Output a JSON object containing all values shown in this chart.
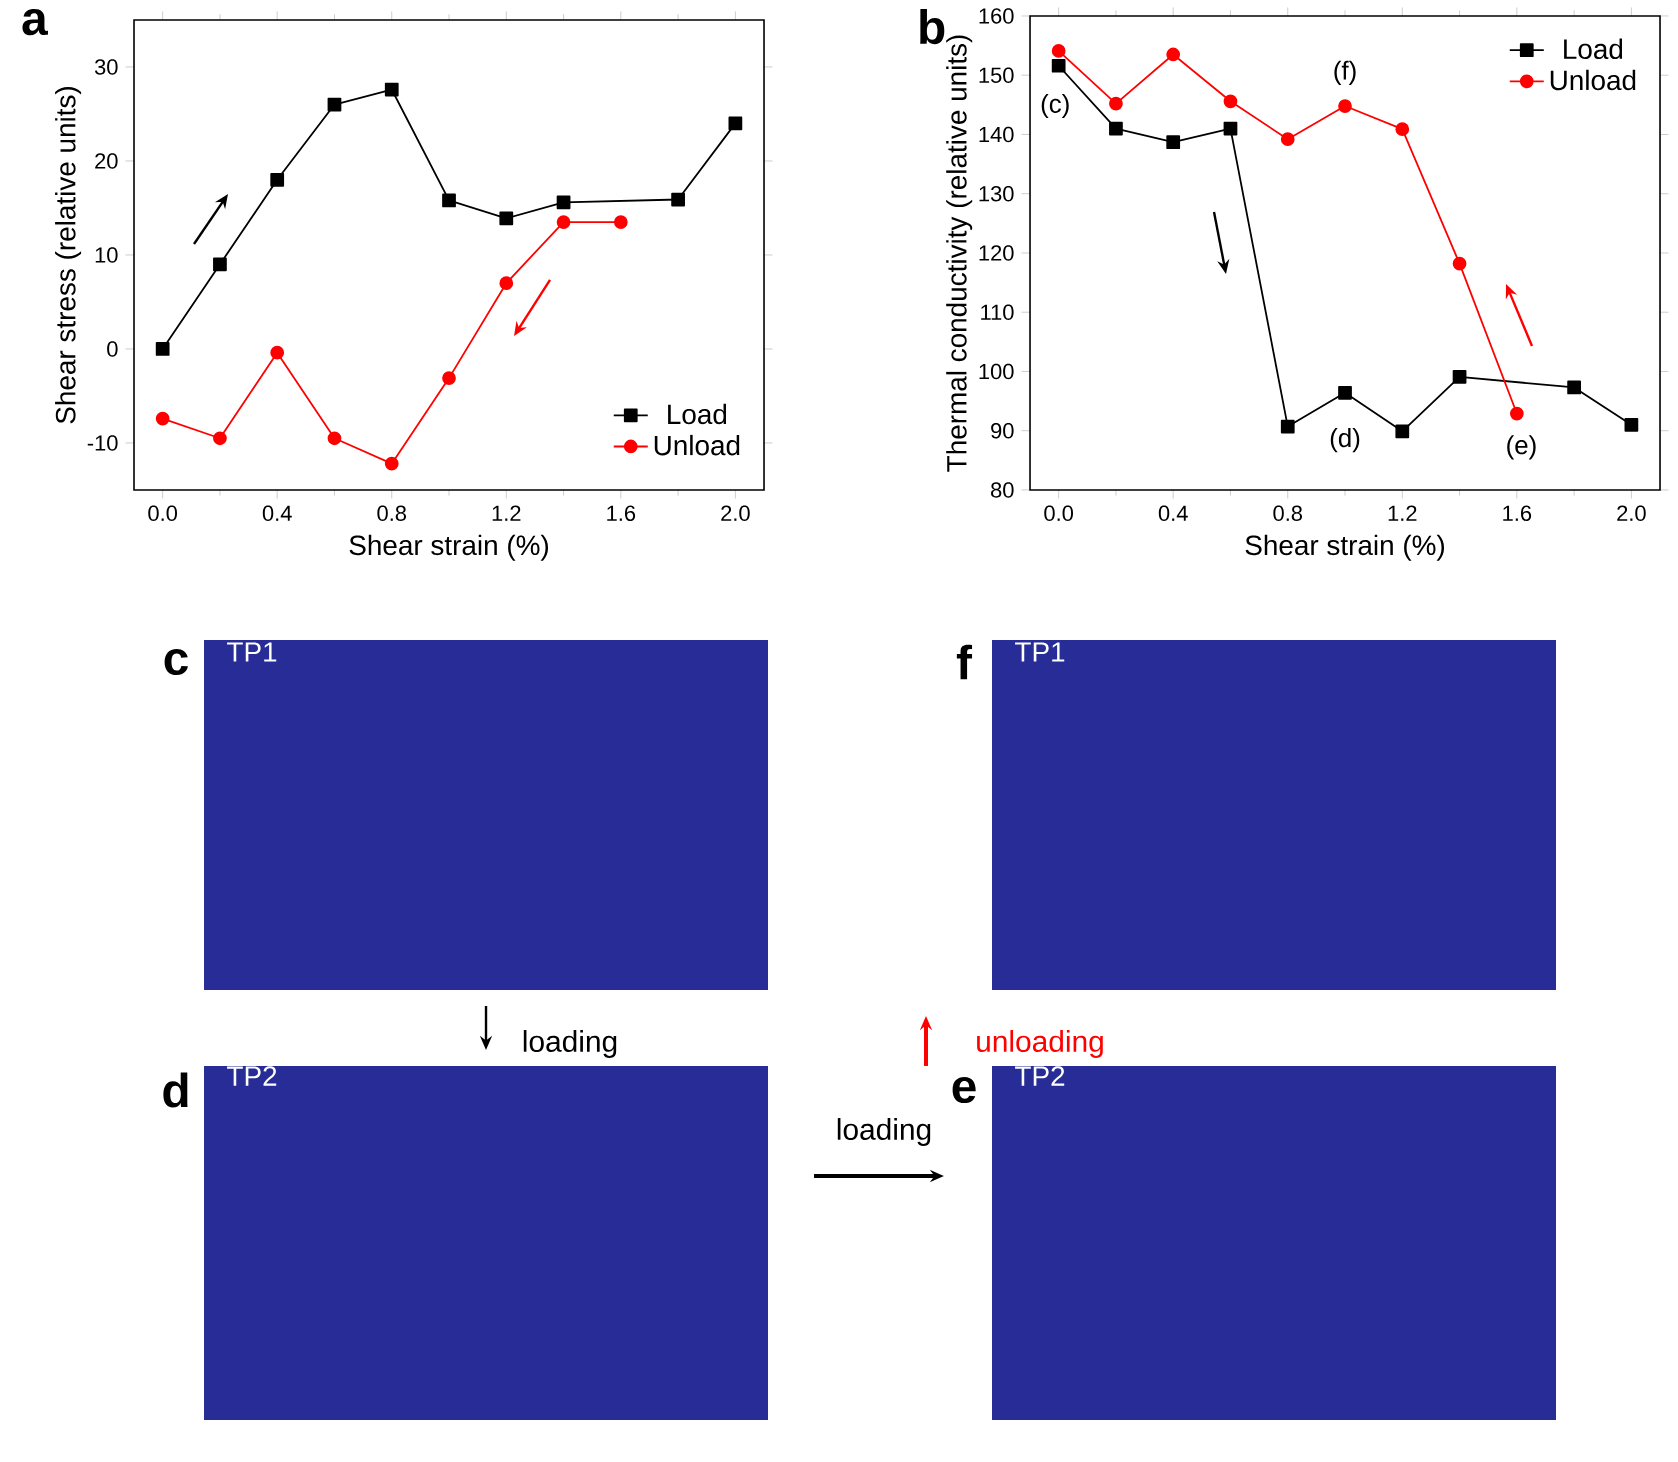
{
  "chart_data": [
    {
      "type": "line",
      "title": "a",
      "xlabel": "Shear strain (%)",
      "ylabel": "Shear stress (relative units)",
      "x": [
        0,
        0.2,
        0.4,
        0.6,
        0.8,
        1.0,
        1.2,
        1.4,
        1.6,
        1.8,
        2.0
      ],
      "series": [
        {
          "name": "Load",
          "color": "#000000",
          "marker": "square",
          "values": [
            0,
            9.0,
            18,
            26.0,
            27.6,
            15.8,
            13.9,
            15.6,
            null,
            15.9,
            24.0
          ]
        },
        {
          "name": "Unload",
          "color": "#ff0000",
          "marker": "circle",
          "values": [
            -7.4,
            -9.5,
            -0.4,
            -9.5,
            -12.2,
            -3.1,
            7.0,
            13.5,
            13.5,
            null,
            null
          ]
        }
      ],
      "xlim": [
        -0.1,
        2.1
      ],
      "ylim": [
        -15,
        35
      ],
      "xticks": [
        {
          "value": 0,
          "label": "0.0"
        },
        {
          "value": 0.4,
          "label": "0.4"
        },
        {
          "value": 0.8,
          "label": "0.8"
        },
        {
          "value": 1.2,
          "label": "1.2"
        },
        {
          "value": 1.6,
          "label": "1.6"
        },
        {
          "value": 2.0,
          "label": "2.0"
        }
      ],
      "yticks": [
        -10,
        0,
        10,
        20,
        30
      ],
      "legend": "bottom right",
      "grid": false
    },
    {
      "type": "line",
      "title": "b",
      "xlabel": "Shear strain (%)",
      "ylabel": "Thermal conductivity (relative units)",
      "x": [
        0,
        0.2,
        0.4,
        0.6,
        0.8,
        1.0,
        1.2,
        1.4,
        1.6,
        1.8,
        2.0
      ],
      "series": [
        {
          "name": "Load",
          "color": "#000000",
          "marker": "square",
          "values": [
            151.6,
            141,
            138.7,
            141,
            90.7,
            96.4,
            89.9,
            99.1,
            null,
            97.3,
            91
          ]
        },
        {
          "name": "Unload",
          "color": "#ff0000",
          "marker": "circle",
          "values": [
            154.1,
            145.2,
            153.5,
            145.6,
            139.2,
            144.8,
            140.9,
            118.2,
            92.9,
            null,
            null
          ]
        }
      ],
      "xlim": [
        -0.1,
        2.1
      ],
      "ylim": [
        80,
        160
      ],
      "xticks": [
        {
          "value": 0,
          "label": "0.0"
        },
        {
          "value": 0.4,
          "label": "0.4"
        },
        {
          "value": 0.8,
          "label": "0.8"
        },
        {
          "value": 1.2,
          "label": "1.2"
        },
        {
          "value": 1.6,
          "label": "1.6"
        },
        {
          "value": 2.0,
          "label": "2.0"
        }
      ],
      "yticks": [
        80,
        90,
        100,
        110,
        120,
        130,
        140,
        150,
        160
      ],
      "legend": "top right",
      "grid": false,
      "annotations": [
        "(c)",
        "(f)",
        "(d)",
        "(e)"
      ]
    },
    {
      "type": "other",
      "annotations": [
        "c",
        "TP1",
        "d",
        "TP2",
        "loading",
        "loading",
        "f",
        "TP1",
        "e",
        "TP2",
        "unloading"
      ]
    }
  ]
}
